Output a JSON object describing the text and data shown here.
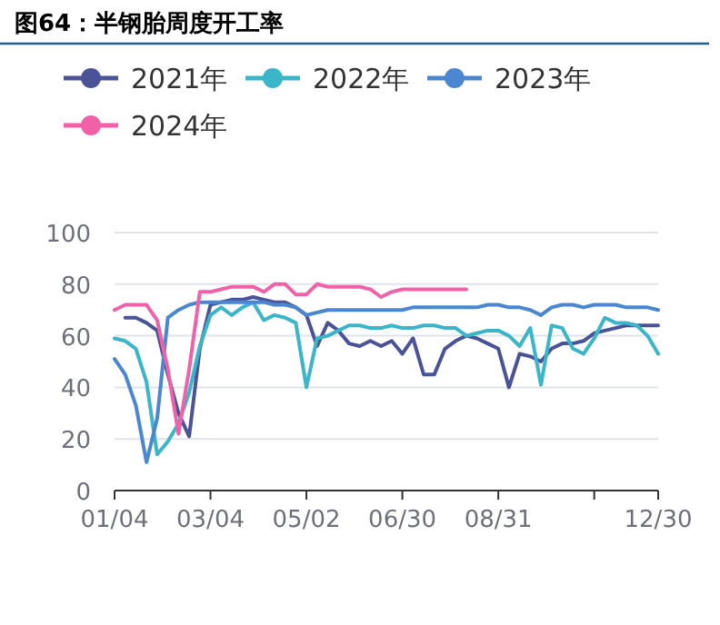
{
  "chart_data": {
    "type": "line",
    "title": "图64：半钢胎周度开工率",
    "categories": [
      "01/04",
      null,
      null,
      null,
      null,
      null,
      null,
      null,
      null,
      "03/04",
      null,
      null,
      null,
      null,
      null,
      null,
      null,
      null,
      "05/02",
      null,
      null,
      null,
      null,
      null,
      null,
      null,
      null,
      "06/30",
      null,
      null,
      null,
      null,
      null,
      null,
      null,
      null,
      "08/31",
      null,
      null,
      null,
      null,
      null,
      null,
      null,
      null,
      null,
      null,
      null,
      null,
      null,
      null,
      "12/30"
    ],
    "ylim": [
      0,
      100
    ],
    "yticks": [
      0,
      20,
      40,
      60,
      80,
      100
    ],
    "grid": "y",
    "legend": "top",
    "series": [
      {
        "name": "2021年",
        "color": "#4a5396",
        "values": [
          null,
          67,
          67,
          65,
          62,
          45,
          30,
          21,
          55,
          72,
          73,
          74,
          74,
          75,
          74,
          73,
          73,
          71,
          68,
          56,
          65,
          62,
          57,
          56,
          58,
          56,
          58,
          53,
          59,
          45,
          45,
          55,
          58,
          60,
          59,
          57,
          55,
          40,
          53,
          52,
          50,
          55,
          57,
          57,
          58,
          61,
          62,
          63,
          64,
          64,
          64,
          64
        ]
      },
      {
        "name": "2022年",
        "color": "#3bb5c8",
        "values": [
          59,
          58,
          55,
          42,
          14,
          19,
          26,
          38,
          56,
          68,
          71,
          68,
          71,
          73,
          66,
          68,
          67,
          65,
          40,
          59,
          60,
          62,
          64,
          64,
          63,
          63,
          64,
          63,
          63,
          64,
          64,
          63,
          63,
          60,
          61,
          62,
          62,
          60,
          56,
          63,
          41,
          64,
          63,
          55,
          53,
          59,
          67,
          65,
          65,
          64,
          60,
          53
        ]
      },
      {
        "name": "2023年",
        "color": "#4a87d0",
        "values": [
          51,
          45,
          33,
          11,
          28,
          67,
          70,
          72,
          73,
          73,
          73,
          73,
          73,
          73,
          73,
          72,
          72,
          71,
          68,
          69,
          70,
          70,
          70,
          70,
          70,
          70,
          70,
          70,
          71,
          71,
          71,
          71,
          71,
          71,
          71,
          72,
          72,
          71,
          71,
          70,
          68,
          71,
          72,
          72,
          71,
          72,
          72,
          72,
          71,
          71,
          71,
          70
        ]
      },
      {
        "name": "2024年",
        "color": "#f061a8",
        "values": [
          70,
          72,
          72,
          72,
          66,
          47,
          22,
          47,
          77,
          77,
          78,
          79,
          79,
          79,
          77,
          80,
          80,
          76,
          76,
          80,
          79,
          79,
          79,
          79,
          78,
          75,
          77,
          78,
          78,
          78,
          78,
          78,
          78,
          78,
          null,
          null,
          null,
          null,
          null,
          null,
          null,
          null,
          null,
          null,
          null,
          null,
          null,
          null,
          null,
          null,
          null,
          null
        ]
      }
    ]
  }
}
